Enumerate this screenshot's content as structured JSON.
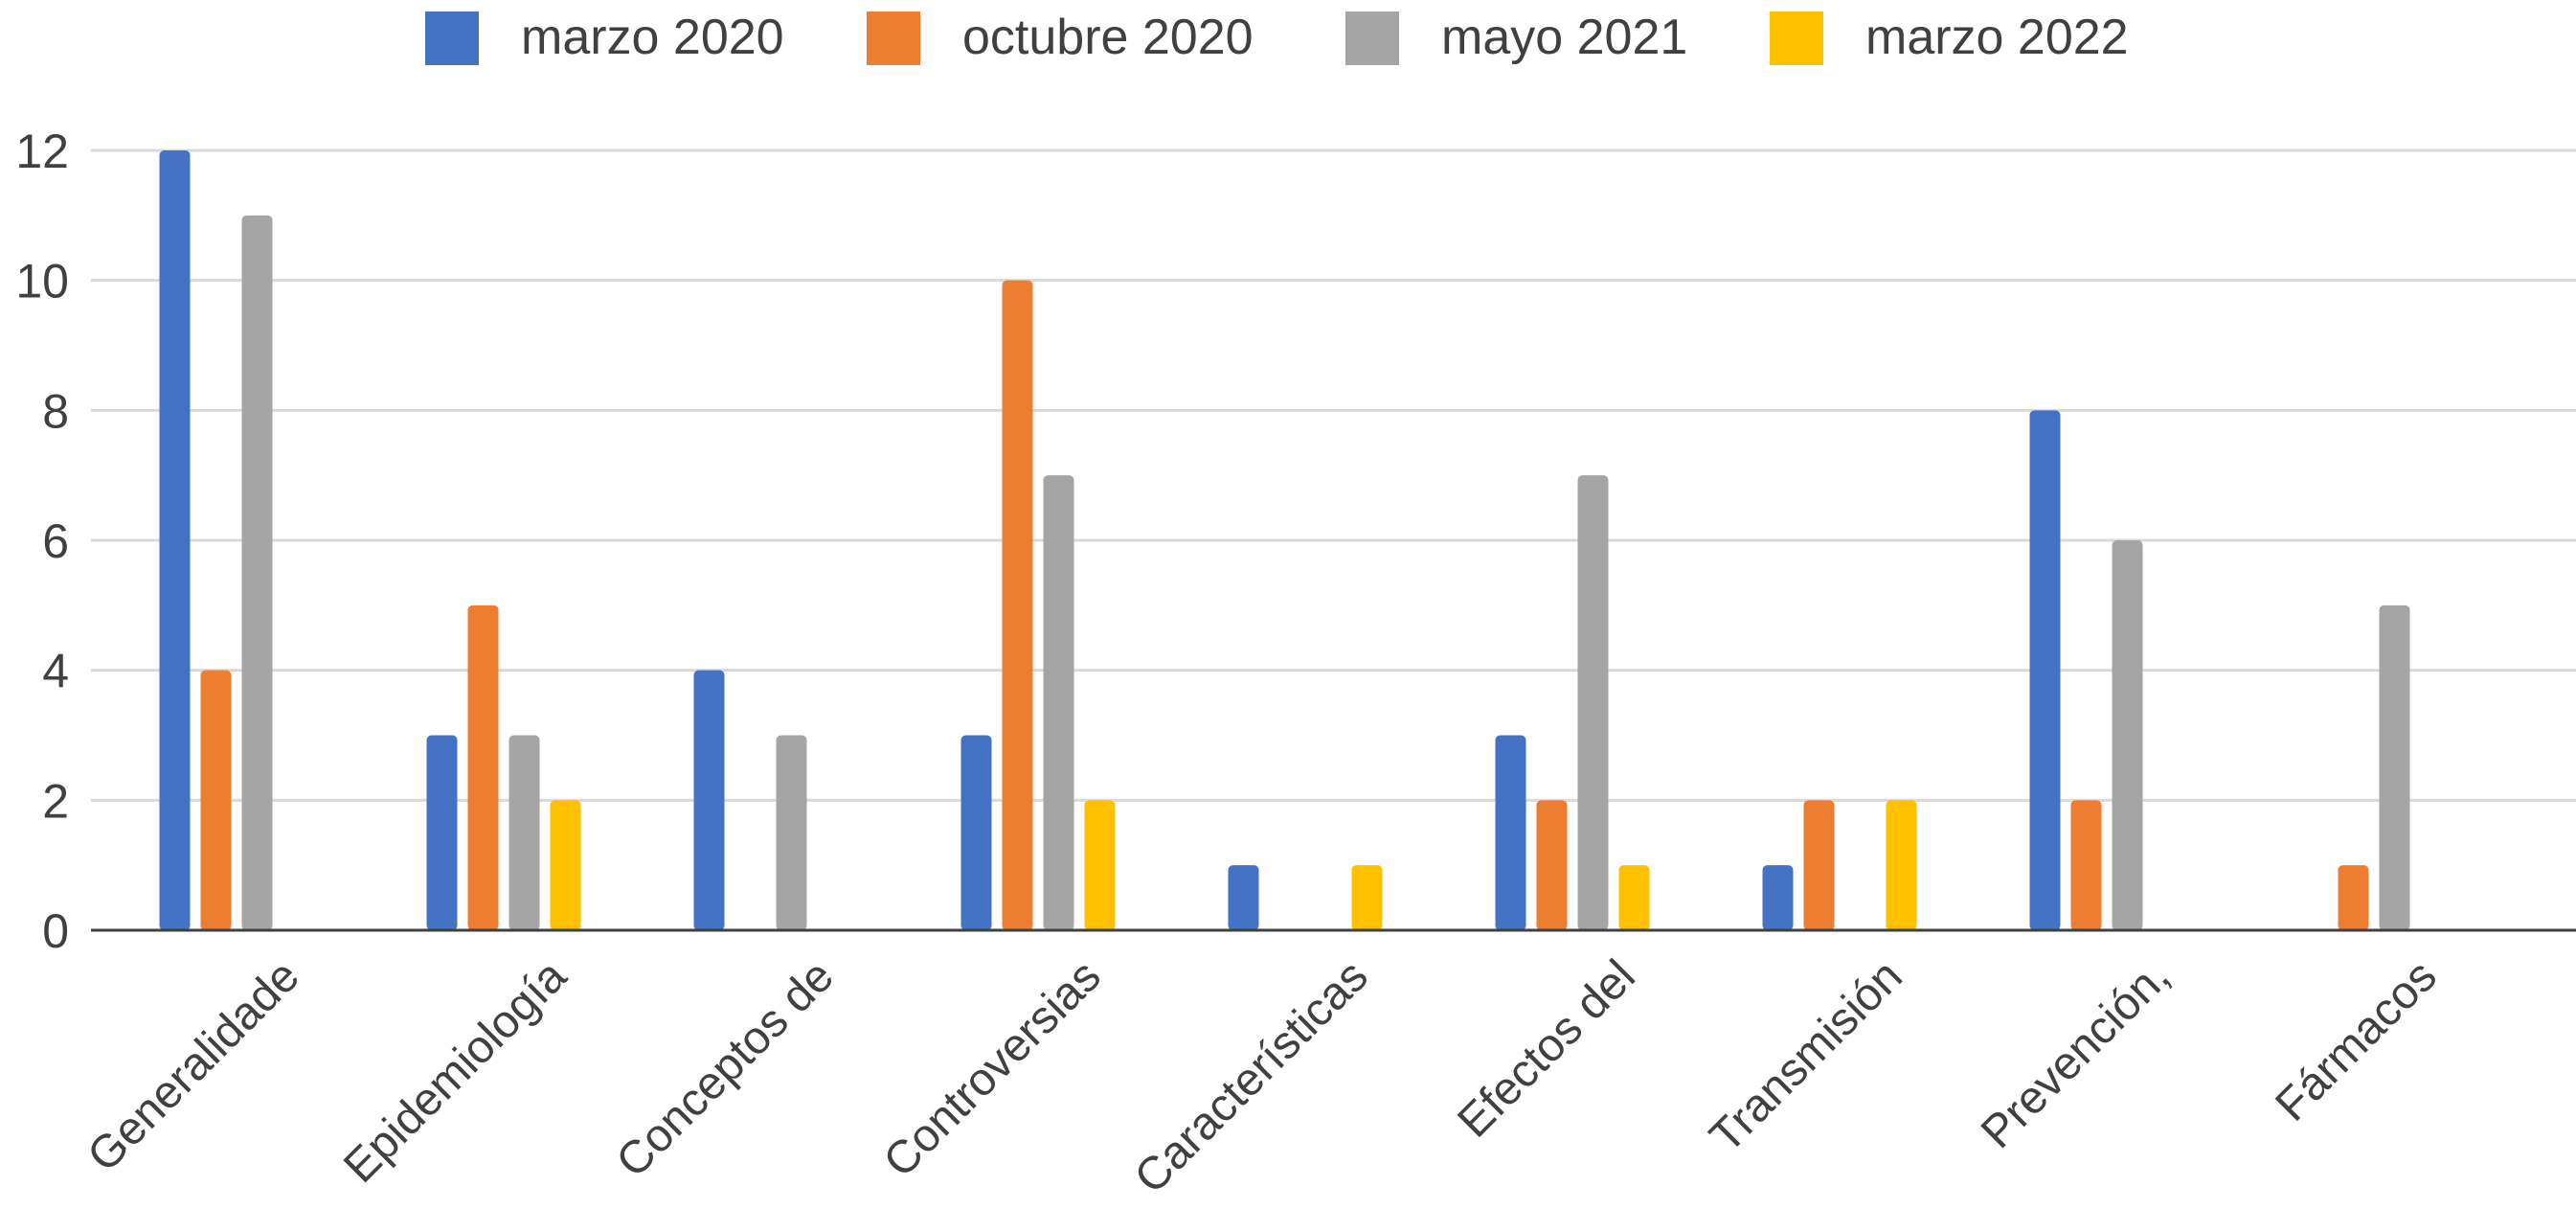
{
  "chart_data": {
    "type": "bar",
    "categories": [
      "Generalidade",
      "Epidemiología",
      "Conceptos de",
      "Controversias",
      "Características",
      "Efectos del",
      "Transmisión",
      "Prevención,",
      "Fármacos"
    ],
    "series": [
      {
        "name": "marzo 2020",
        "color": "#4472C4",
        "values": [
          12,
          3,
          4,
          3,
          1,
          3,
          1,
          8,
          0
        ]
      },
      {
        "name": "octubre 2020",
        "color": "#ED7D31",
        "values": [
          4,
          5,
          0,
          10,
          0,
          2,
          2,
          2,
          1
        ]
      },
      {
        "name": "mayo 2021",
        "color": "#A5A5A5",
        "values": [
          11,
          3,
          3,
          7,
          0,
          7,
          0,
          6,
          5
        ]
      },
      {
        "name": "marzo 2022",
        "color": "#FFC000",
        "values": [
          0,
          2,
          0,
          2,
          1,
          1,
          2,
          0,
          0
        ]
      }
    ],
    "ylim": [
      0,
      12
    ],
    "yticks": [
      0,
      2,
      4,
      6,
      8,
      10,
      12
    ],
    "grid": true,
    "legend": "top"
  }
}
